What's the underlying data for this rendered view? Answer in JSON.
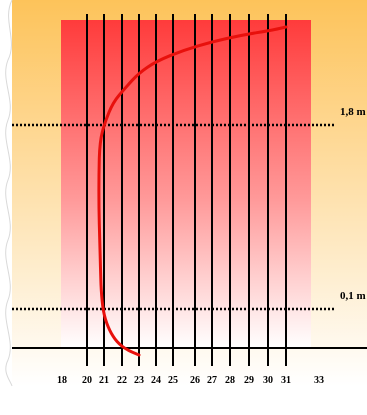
{
  "chart_data": {
    "type": "line",
    "x_ticks": [
      18,
      20,
      21,
      22,
      23,
      24,
      25,
      26,
      27,
      28,
      29,
      30,
      31,
      33
    ],
    "xlim": [
      18,
      33
    ],
    "reference_lines": [
      {
        "label": "1,8 m"
      },
      {
        "label": "0,1 m"
      }
    ],
    "series": [
      {
        "color": "#e8100c",
        "points": [
          [
            31.0,
            1.0
          ],
          [
            30.2,
            0.99
          ],
          [
            28.6,
            0.975
          ],
          [
            27.0,
            0.955
          ],
          [
            25.5,
            0.93
          ],
          [
            24.0,
            0.895
          ],
          [
            23.0,
            0.86
          ],
          [
            22.2,
            0.815
          ],
          [
            21.5,
            0.77
          ],
          [
            21.05,
            0.71
          ],
          [
            20.75,
            0.65
          ],
          [
            20.7,
            0.55
          ],
          [
            20.7,
            0.45
          ],
          [
            20.75,
            0.35
          ],
          [
            20.8,
            0.25
          ],
          [
            20.85,
            0.18
          ],
          [
            21.0,
            0.12
          ],
          [
            21.3,
            0.075
          ],
          [
            21.7,
            0.04
          ],
          [
            22.3,
            0.015
          ],
          [
            23.0,
            0.0
          ]
        ]
      }
    ]
  },
  "colors": {
    "panel_top": "#fdc35a",
    "panel_bottom": "#ffffff",
    "block_top": "#ff3b3b",
    "block_bottom": "#ffffff",
    "curve": "#e8100c",
    "lines": "#000000"
  }
}
